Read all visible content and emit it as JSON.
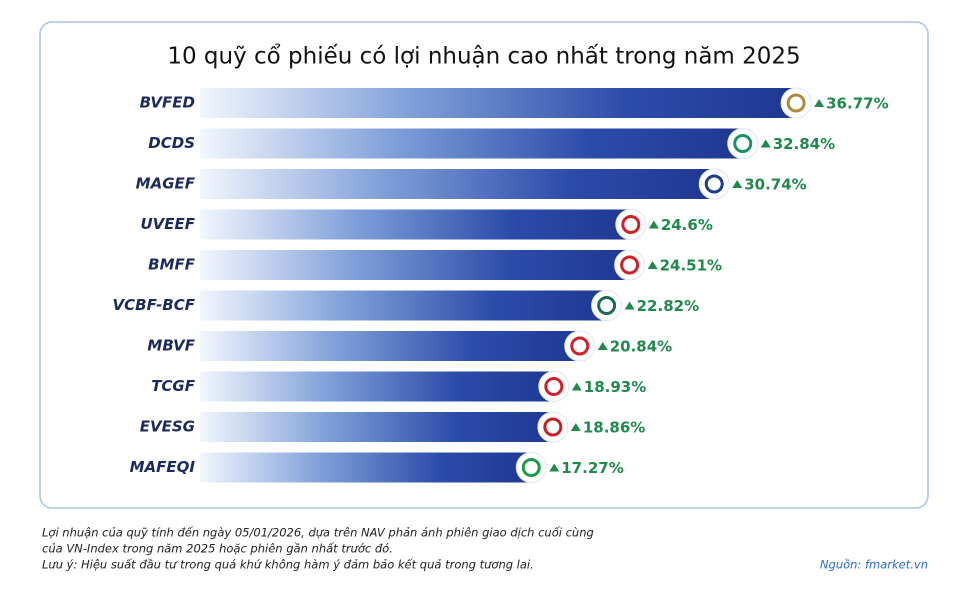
{
  "chart_data": {
    "type": "bar",
    "orientation": "horizontal",
    "title": "10 quỹ cổ phiếu có lợi nhuận cao nhất trong năm 2025",
    "categories": [
      "BVFED",
      "DCDS",
      "MAGEF",
      "UVEEF",
      "BMFF",
      "VCBF-BCF",
      "MBVF",
      "TCGF",
      "EVESG",
      "MAFEQI"
    ],
    "values": [
      36.77,
      32.84,
      30.74,
      24.6,
      24.51,
      22.82,
      20.84,
      18.93,
      18.86,
      17.27
    ],
    "value_labels": [
      "36.77%",
      "32.84%",
      "30.74%",
      "24.6%",
      "24.51%",
      "22.82%",
      "20.84%",
      "18.93%",
      "18.86%",
      "17.27%"
    ],
    "color": "#1f3a9c",
    "xlim": [
      -8,
      40
    ],
    "notes": [
      "Lợi nhuận của quỹ tính đến ngày 05/01/2026, dựa trên NAV phản ánh phiên giao dịch cuối cùng",
      "của VN-Index trong năm 2025 hoặc phiên gần nhất trước đó.",
      "Lưu ý: Hiệu suất đầu tư trong quá khứ không hàm ý đảm bảo kết quả trong tương lai."
    ],
    "source": "Nguồn: fmarket.vn"
  }
}
